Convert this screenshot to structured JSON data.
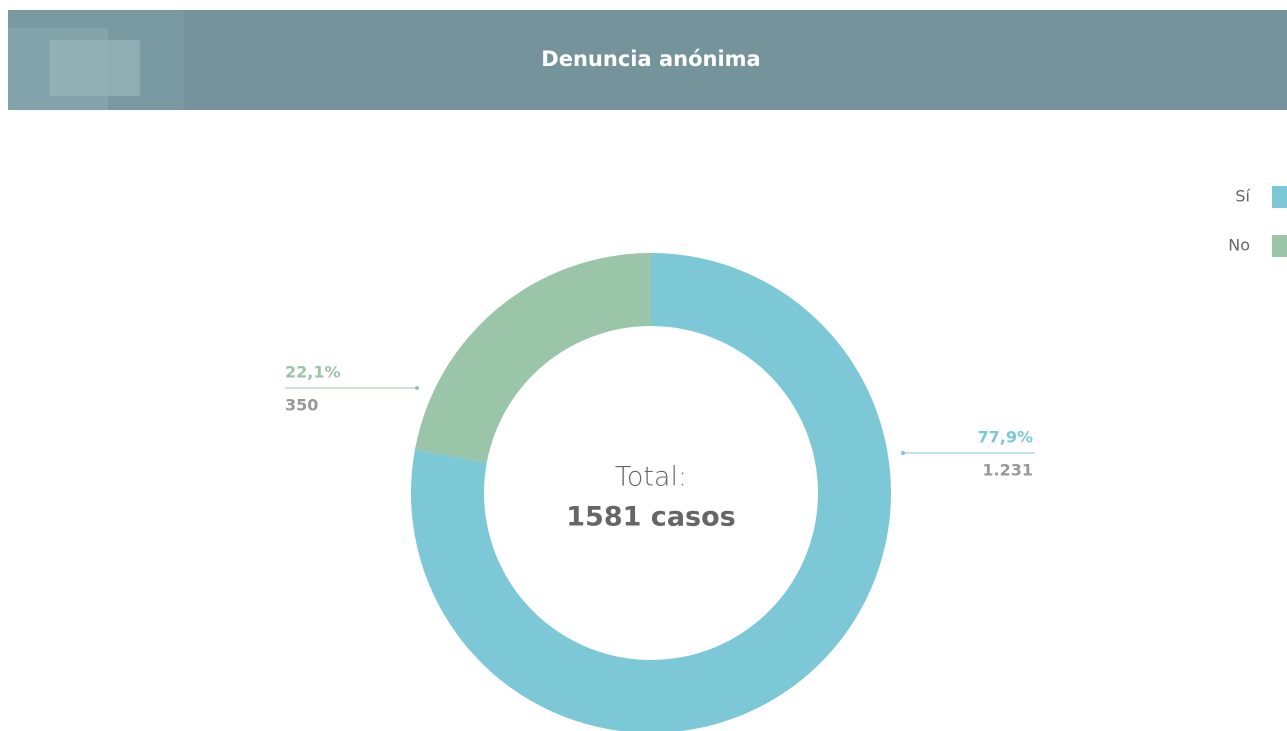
{
  "chart_data": {
    "type": "pie",
    "title": "Denuncia anónima",
    "categories": [
      "Sí",
      "No"
    ],
    "values": [
      77.9,
      22.1
    ],
    "value_labels": [
      "77,9%",
      "22,1%"
    ],
    "counts": [
      1231,
      350
    ],
    "count_labels": [
      "1.231",
      "350"
    ],
    "colors": [
      "#7cc8d6",
      "#9ac5a8"
    ],
    "center_label": "Total:",
    "center_value": "1581 casos",
    "legend": "top-right"
  }
}
